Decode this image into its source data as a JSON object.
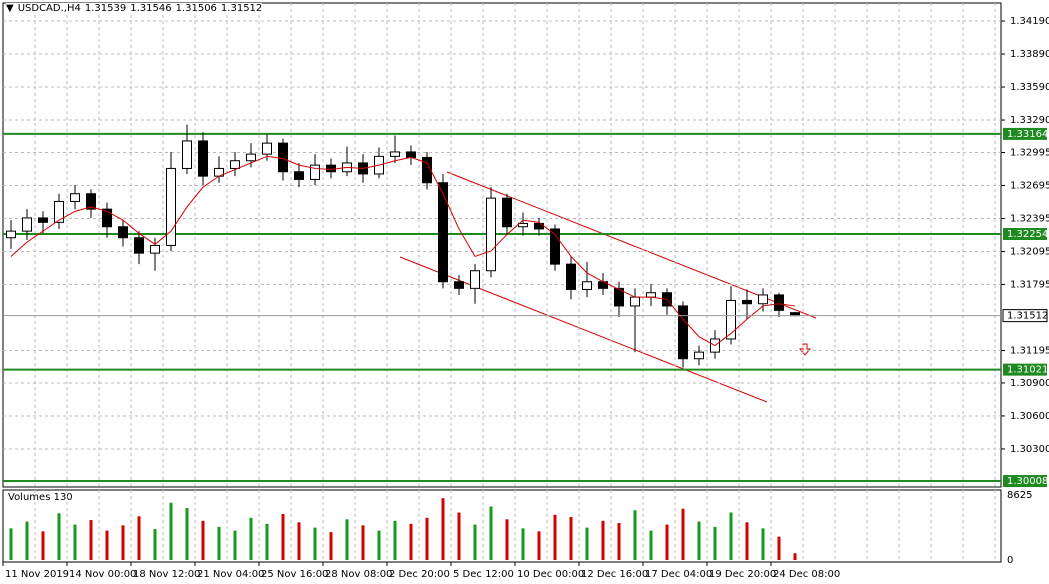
{
  "chart_data": {
    "type": "candlestick",
    "symbol": "USDCAD.,H4",
    "categories": [
      "11 Nov 2019",
      null,
      null,
      null,
      "14 Nov 00:00",
      null,
      null,
      null,
      "18 Nov 12:00",
      null,
      null,
      null,
      "21 Nov 04:00",
      null,
      null,
      null,
      "25 Nov 16:00",
      null,
      null,
      null,
      "28 Nov 08:00",
      null,
      null,
      null,
      "2 Dec 20:00",
      null,
      null,
      null,
      "5 Dec 12:00",
      null,
      null,
      null,
      "10 Dec 00:00",
      null,
      null,
      null,
      "12 Dec 16:00",
      null,
      null,
      null,
      "17 Dec 04:00",
      null,
      null,
      null,
      "19 Dec 20:00",
      null,
      null,
      null,
      "24 Dec 08:00",
      null
    ],
    "open": [
      1.3222,
      1.3228,
      1.324,
      1.3236,
      1.3255,
      1.3262,
      1.3248,
      1.3232,
      1.3222,
      1.3208,
      1.3215,
      1.3285,
      1.331,
      1.3278,
      1.3285,
      1.3292,
      1.3298,
      1.3308,
      1.3282,
      1.3275,
      1.3288,
      1.3282,
      1.329,
      1.328,
      1.3296,
      1.33,
      1.3295,
      1.3272,
      1.3182,
      1.3176,
      1.3192,
      1.3258,
      1.3232,
      1.3235,
      1.323,
      1.3198,
      1.3175,
      1.3182,
      1.3176,
      1.316,
      1.3168,
      1.3172,
      1.316,
      1.3112,
      1.3118,
      1.313,
      1.3165,
      1.3162,
      1.317,
      1.31539
    ],
    "high": [
      1.3238,
      1.3248,
      1.3246,
      1.3262,
      1.327,
      1.3266,
      1.3254,
      1.3238,
      1.3228,
      1.3222,
      1.33,
      1.3325,
      1.3318,
      1.3296,
      1.33,
      1.3308,
      1.3316,
      1.3312,
      1.329,
      1.3298,
      1.3294,
      1.3305,
      1.3298,
      1.3304,
      1.3315,
      1.3306,
      1.33,
      1.328,
      1.3188,
      1.3198,
      1.3268,
      1.3262,
      1.3245,
      1.324,
      1.3234,
      1.3205,
      1.32,
      1.319,
      1.3182,
      1.3176,
      1.318,
      1.3176,
      1.3164,
      1.3124,
      1.3138,
      1.3178,
      1.3175,
      1.3176,
      1.3172,
      1.31546
    ],
    "low": [
      1.3212,
      1.322,
      1.3226,
      1.323,
      1.3248,
      1.324,
      1.3222,
      1.3214,
      1.3198,
      1.3192,
      1.321,
      1.328,
      1.327,
      1.3272,
      1.3278,
      1.3286,
      1.3292,
      1.3274,
      1.3268,
      1.327,
      1.3276,
      1.3278,
      1.3272,
      1.3276,
      1.329,
      1.3288,
      1.3266,
      1.3176,
      1.317,
      1.3162,
      1.3186,
      1.3225,
      1.3224,
      1.3224,
      1.3192,
      1.3166,
      1.3168,
      1.317,
      1.315,
      1.3118,
      1.316,
      1.3152,
      1.3104,
      1.3106,
      1.3112,
      1.3125,
      1.3148,
      1.3155,
      1.315,
      1.31506
    ],
    "close": [
      1.3228,
      1.324,
      1.3236,
      1.3255,
      1.3262,
      1.3248,
      1.3232,
      1.3222,
      1.3208,
      1.3215,
      1.3285,
      1.331,
      1.3278,
      1.3285,
      1.3292,
      1.3298,
      1.3308,
      1.3282,
      1.3275,
      1.3288,
      1.3282,
      1.329,
      1.328,
      1.3296,
      1.33,
      1.3295,
      1.3272,
      1.3182,
      1.3176,
      1.3192,
      1.3258,
      1.3232,
      1.3235,
      1.323,
      1.3198,
      1.3175,
      1.3182,
      1.3176,
      1.316,
      1.3168,
      1.3172,
      1.316,
      1.3112,
      1.3118,
      1.313,
      1.3165,
      1.3162,
      1.317,
      1.3156,
      1.31512
    ],
    "ma": [
      1.3205,
      1.3218,
      1.3228,
      1.3238,
      1.3246,
      1.325,
      1.3246,
      1.3238,
      1.3226,
      1.3216,
      1.3228,
      1.325,
      1.3268,
      1.3278,
      1.3284,
      1.329,
      1.3296,
      1.3294,
      1.3288,
      1.3285,
      1.3284,
      1.3286,
      1.3285,
      1.3288,
      1.3292,
      1.3295,
      1.329,
      1.3262,
      1.323,
      1.3205,
      1.321,
      1.3225,
      1.3238,
      1.3236,
      1.3225,
      1.3205,
      1.319,
      1.3182,
      1.3175,
      1.3168,
      1.3168,
      1.3166,
      1.3148,
      1.3132,
      1.3124,
      1.3135,
      1.3148,
      1.316,
      1.3162,
      1.316
    ],
    "ma_color": "#d40000",
    "ylim": [
      1.29954,
      1.34354
    ],
    "yticks": [
      {
        "value": 1.3419,
        "label": "1.34190"
      },
      {
        "value": 1.3389,
        "label": "1.33890"
      },
      {
        "value": 1.3359,
        "label": "1.33590"
      },
      {
        "value": 1.3329,
        "label": "1.33290"
      },
      1.32995,
      1.32695,
      1.32395,
      1.32095,
      1.31795,
      1.31195,
      {
        "value": 1.309,
        "label": "1.30900"
      },
      {
        "value": 1.306,
        "label": "1.30600"
      },
      {
        "value": 1.303,
        "label": "1.30300"
      }
    ],
    "levels": [
      1.33164,
      1.32254,
      1.31021,
      1.30008
    ],
    "level_color": "#1f8a1f",
    "grid": true,
    "volume_title": "Volumes 130",
    "volume": [
      4200,
      5100,
      3800,
      6200,
      4700,
      5300,
      3900,
      4600,
      5800,
      4100,
      7600,
      6900,
      5200,
      4400,
      3900,
      5600,
      4800,
      6100,
      5000,
      4300,
      3700,
      5400,
      4600,
      3900,
      5200,
      4800,
      5600,
      8200,
      6300,
      4700,
      7100,
      5400,
      4200,
      3800,
      6000,
      5700,
      4300,
      5200,
      4900,
      6600,
      3900,
      4700,
      6800,
      5100,
      4400,
      6300,
      5000,
      4200,
      3100,
      900
    ],
    "volume_up_color": "#1a9a1a",
    "volume_down_color": "#d40000",
    "volume_ylim": [
      0,
      8625
    ],
    "volume_yticks": [
      8625,
      0
    ]
  }
}
